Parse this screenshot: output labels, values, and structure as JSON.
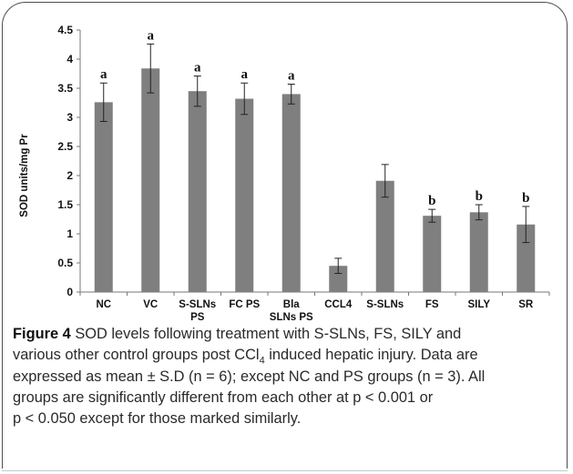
{
  "chart_data": {
    "type": "bar",
    "ylabel": "SOD units/mg Pr",
    "xlabel": "",
    "ylim": [
      0,
      4.5
    ],
    "yticks": [
      "0",
      "0.5",
      "1",
      "1.5",
      "2",
      "2.5",
      "3",
      "3.5",
      "4",
      "4.5"
    ],
    "categories": [
      [
        "NC"
      ],
      [
        "VC"
      ],
      [
        "S-SLNs",
        "PS"
      ],
      [
        "FC PS"
      ],
      [
        "Bla",
        "SLNs PS"
      ],
      [
        "CCL4"
      ],
      [
        "S-SLNs"
      ],
      [
        "FS"
      ],
      [
        "SILY"
      ],
      [
        "SR"
      ]
    ],
    "values": [
      3.26,
      3.84,
      3.45,
      3.32,
      3.4,
      0.45,
      1.91,
      1.31,
      1.37,
      1.16
    ],
    "errors": [
      0.33,
      0.42,
      0.26,
      0.27,
      0.17,
      0.13,
      0.28,
      0.11,
      0.13,
      0.31
    ],
    "significance_labels": [
      "a",
      "a",
      "a",
      "a",
      "a",
      "",
      "",
      "b",
      "b",
      "b"
    ],
    "bar_color": "#7f7f7f",
    "grid": false
  },
  "caption": {
    "figure_label": "Figure 4",
    "line1": "SOD levels following treatment with S-SLNs, FS, SILY and",
    "line2_pre": "various other control groups post CCl",
    "line2_sub": "4",
    "line2_post": " induced hepatic injury. Data are",
    "line3": "expressed as mean ± S.D (n = 6); except NC and PS groups (n = 3). All",
    "line4": "groups are significantly different from each other at p < 0.001 or",
    "line5": "p < 0.050 except for those marked similarly."
  }
}
